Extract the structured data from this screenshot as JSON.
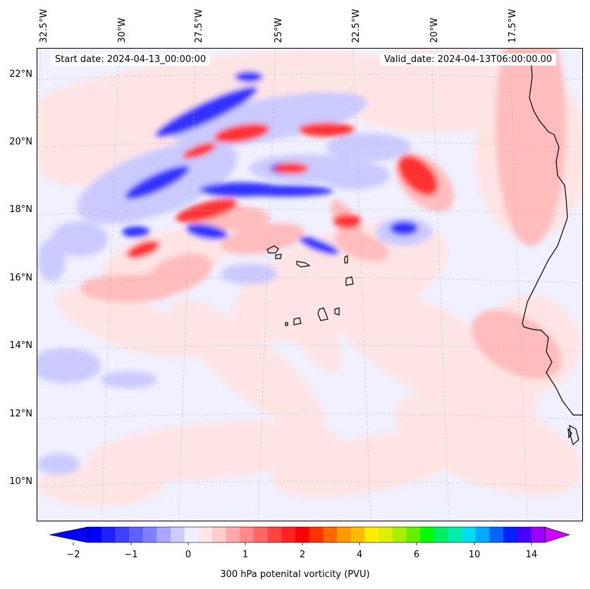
{
  "map": {
    "start_date": "Start date: 2024-04-13_00:00:00",
    "valid_date": "Valid_date: 2024-04-13T06:00:00.00",
    "longitude_labels": [
      "32.5°W",
      "30°W",
      "27.5°W",
      "25°W",
      "22.5°W",
      "20°W",
      "17.5°W"
    ],
    "latitude_labels": [
      "22°N",
      "20°N",
      "18°N",
      "16°N",
      "14°N",
      "12°N",
      "10°N"
    ],
    "field_colors": {
      "background": "#f0f0fe",
      "weak_positive": "#ffe4e4",
      "moderate_positive": "#ffbcbc",
      "strong_positive": "#ff3030",
      "weak_negative": "#cacaff",
      "strong_negative": "#3030ff",
      "coastline": "#000000"
    }
  },
  "colorbar": {
    "label": "300 hPa potenital vorticity (PVU)",
    "tick_labels": [
      "−2",
      "−1",
      "0",
      "1",
      "2",
      "4",
      "6",
      "10",
      "14"
    ],
    "colors": [
      "#0000ff",
      "#2020ff",
      "#4040ff",
      "#6060ff",
      "#8080ff",
      "#a8a8ff",
      "#ccccff",
      "#eeeeff",
      "#ffe6e6",
      "#ffcccc",
      "#ffaaaa",
      "#ff8888",
      "#ff6666",
      "#ff4444",
      "#ff2222",
      "#ff0000",
      "#ff3300",
      "#ff6600",
      "#ff9900",
      "#ffbb00",
      "#ffee00",
      "#ddee00",
      "#aaee00",
      "#66ee00",
      "#00ff00",
      "#00ee66",
      "#00eeaa",
      "#00ddee",
      "#00aaff",
      "#0066ff",
      "#0022ff",
      "#4400ff",
      "#9900ff"
    ],
    "under_color": "#0000ff",
    "over_color": "#cc00ff"
  }
}
